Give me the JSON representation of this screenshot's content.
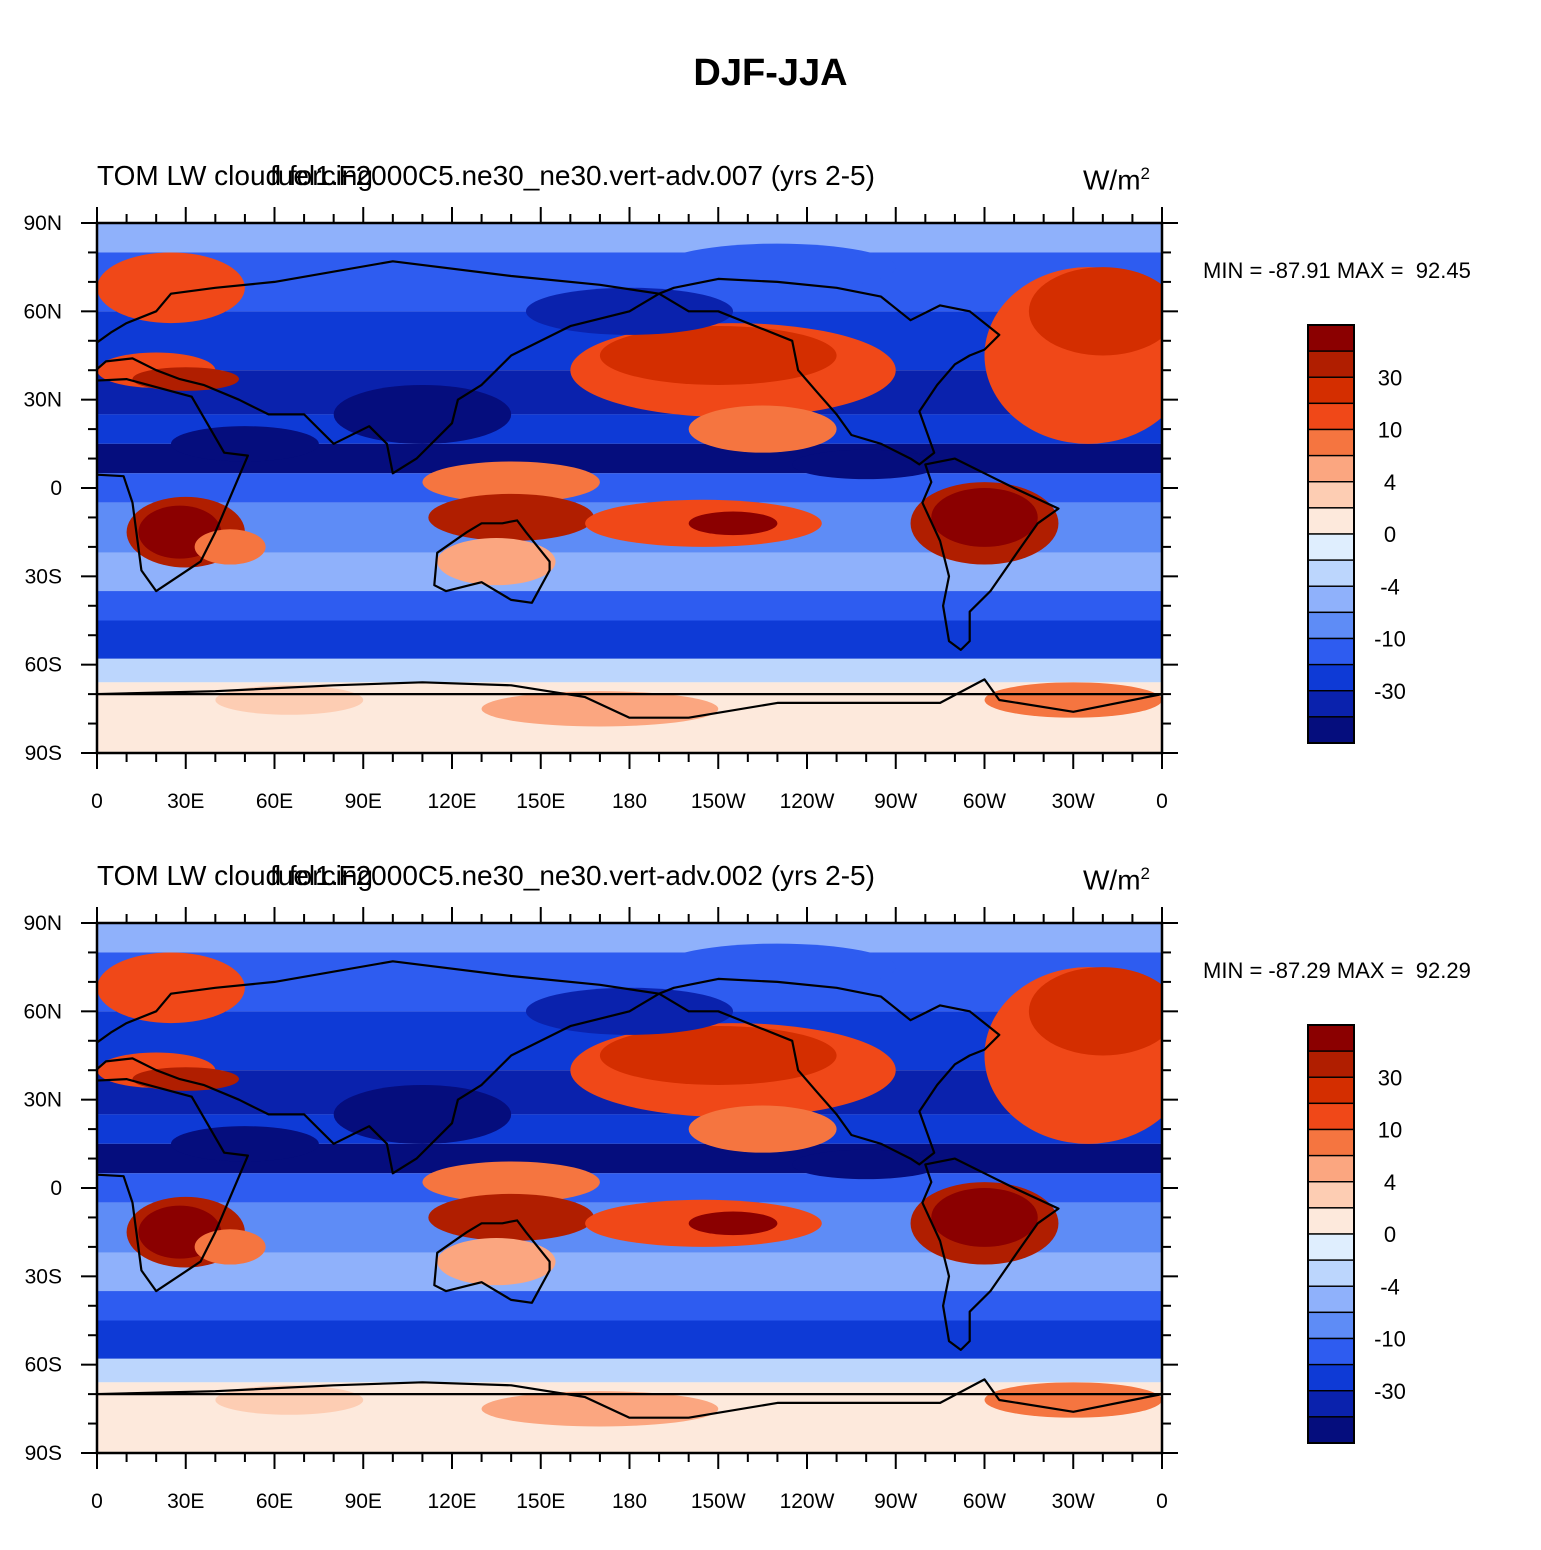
{
  "figure": {
    "title": "DJF-JJA"
  },
  "panels": [
    {
      "title_left": "TOM LW cloud forcing",
      "title_center": "fuel1.F2000C5.ne30_ne30.vert-adv.007 (yrs 2-5)",
      "units": "W/m",
      "units_sup": "2",
      "stats": "MIN = -87.91 MAX =  92.45"
    },
    {
      "title_left": "TOM LW cloud forcing",
      "title_center": "fuel1.F2000C5.ne30_ne30.vert-adv.002 (yrs 2-5)",
      "units": "W/m",
      "units_sup": "2",
      "stats": "MIN = -87.29 MAX =  92.29"
    }
  ],
  "axes": {
    "lat_labels": [
      "90N",
      "60N",
      "30N",
      "0",
      "30S",
      "60S",
      "90S"
    ],
    "lon_labels": [
      "0",
      "30E",
      "60E",
      "90E",
      "120E",
      "150E",
      "180",
      "150W",
      "120W",
      "90W",
      "60W",
      "30W",
      "0"
    ]
  },
  "colorbar": {
    "labels": [
      "30",
      "10",
      "4",
      "0",
      "-4",
      "-10",
      "-30"
    ],
    "colors": [
      "#8b0000",
      "#b01e00",
      "#d42e00",
      "#f04818",
      "#f57540",
      "#fba680",
      "#fdcdb3",
      "#fde9dc",
      "#dfeefe",
      "#bcd6fd",
      "#8fb1fb",
      "#5e8cf6",
      "#2e5cf0",
      "#0e3ad6",
      "#0a22ad",
      "#050d7d"
    ]
  }
}
